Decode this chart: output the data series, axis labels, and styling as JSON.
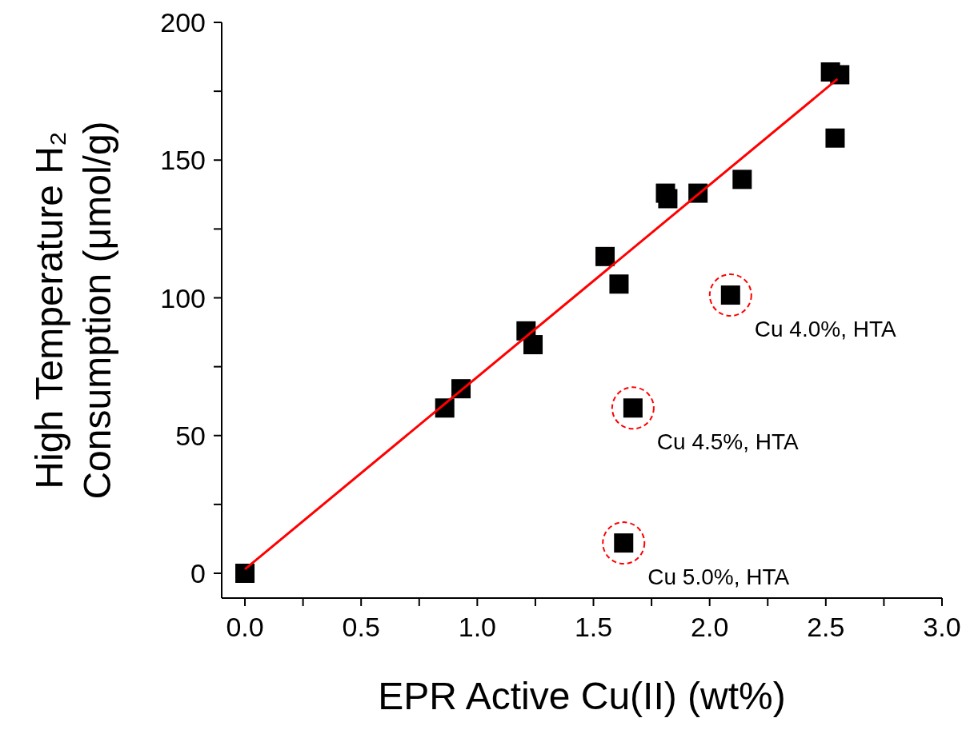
{
  "chart_data": {
    "type": "scatter",
    "xlabel": "EPR Active Cu(II) (wt%)",
    "ylabel": "High Temperature H₂\nConsumption (μmol/g)",
    "xlim": [
      -0.1,
      3.0
    ],
    "ylim": [
      -9,
      200
    ],
    "xticks": [
      {
        "value": 0,
        "label": "0.0"
      },
      {
        "value": 0.25,
        "label": null
      },
      {
        "value": 0.5,
        "label": "0.5"
      },
      {
        "value": 0.75,
        "label": null
      },
      {
        "value": 1,
        "label": "1.0"
      },
      {
        "value": 1.25,
        "label": null
      },
      {
        "value": 1.5,
        "label": "1.5"
      },
      {
        "value": 1.75,
        "label": null
      },
      {
        "value": 2,
        "label": "2.0"
      },
      {
        "value": 2.25,
        "label": null
      },
      {
        "value": 2.5,
        "label": "2.5"
      },
      {
        "value": 2.75,
        "label": null
      },
      {
        "value": 3,
        "label": "3.0"
      }
    ],
    "yticks": [
      0,
      {
        "value": 25,
        "label": null
      },
      50,
      {
        "value": 75,
        "label": null
      },
      100,
      {
        "value": 125,
        "label": null
      },
      150,
      {
        "value": 175,
        "label": null
      },
      200
    ],
    "series": [
      {
        "marker": "square",
        "color": "#000000",
        "x": [
          0,
          0.86,
          0.93,
          1.21,
          1.24,
          1.55,
          1.61,
          1.81,
          1.82,
          1.95,
          2.14,
          2.54,
          2.52,
          2.56,
          2.09,
          1.67,
          1.63
        ],
        "values": [
          0,
          60,
          67,
          88,
          83,
          115,
          105,
          138,
          136,
          138,
          143,
          158,
          182,
          181,
          101,
          60,
          11
        ]
      },
      {
        "type": "line",
        "marker": "none",
        "color": "#ff0000",
        "x": [
          0,
          2.55
        ],
        "values": [
          1.5,
          179.4
        ]
      }
    ],
    "annotations": [
      {
        "text": "Cu 4.0%, HTA",
        "x": 2.09,
        "y": 101
      },
      {
        "text": "Cu 4.5%, HTA",
        "x": 1.67,
        "y": 60
      },
      {
        "text": "Cu 5.0%, HTA",
        "x": 1.63,
        "y": 11
      }
    ]
  }
}
